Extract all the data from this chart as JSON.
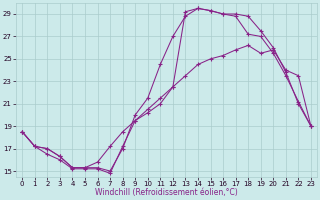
{
  "background_color": "#cceaea",
  "grid_color": "#aacccc",
  "line_color": "#882288",
  "marker": "+",
  "xlabel": "Windchill (Refroidissement éolien,°C)",
  "xlim": [
    -0.5,
    23.5
  ],
  "ylim": [
    14.5,
    30.0
  ],
  "yticks": [
    15,
    17,
    19,
    21,
    23,
    25,
    27,
    29
  ],
  "xticks": [
    0,
    1,
    2,
    3,
    4,
    5,
    6,
    7,
    8,
    9,
    10,
    11,
    12,
    13,
    14,
    15,
    16,
    17,
    18,
    19,
    20,
    21,
    22,
    23
  ],
  "series": [
    [
      18.5,
      17.2,
      17.0,
      16.3,
      15.3,
      15.3,
      15.3,
      15.0,
      17.0,
      20.0,
      21.5,
      24.5,
      27.0,
      28.8,
      29.5,
      29.3,
      29.0,
      28.8,
      27.2,
      27.0,
      25.5,
      23.5,
      21.2,
      19.0
    ],
    [
      18.5,
      17.2,
      17.0,
      16.3,
      15.3,
      15.3,
      15.8,
      17.2,
      18.5,
      19.5,
      20.5,
      21.5,
      22.5,
      23.5,
      24.5,
      25.0,
      25.3,
      25.8,
      26.2,
      25.5,
      25.8,
      24.0,
      23.5,
      19.0
    ],
    [
      18.5,
      17.2,
      16.5,
      16.0,
      15.2,
      15.2,
      15.2,
      14.8,
      17.2,
      19.5,
      20.2,
      21.0,
      22.5,
      29.2,
      29.5,
      29.3,
      29.0,
      29.0,
      28.8,
      27.5,
      26.0,
      23.8,
      21.0,
      19.0
    ]
  ]
}
